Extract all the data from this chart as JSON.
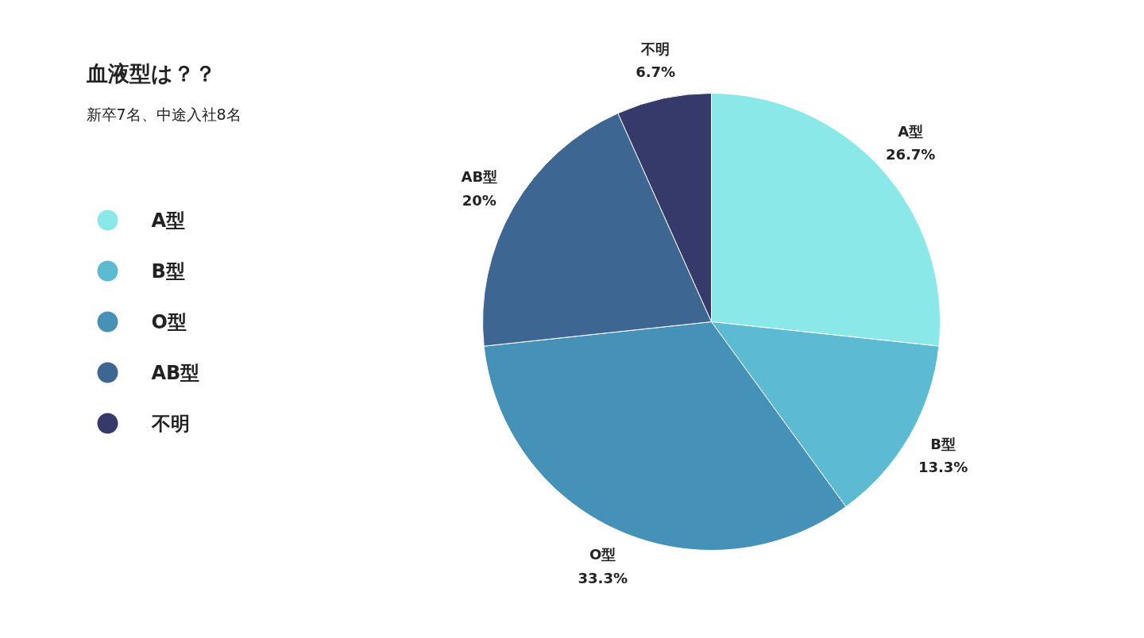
{
  "chart_data": {
    "type": "pie",
    "title": "血液型は？？",
    "subtitle": "新卒7名、中途入社8名",
    "categories": [
      "A型",
      "B型",
      "O型",
      "AB型",
      "不明"
    ],
    "values": [
      26.7,
      13.3,
      33.3,
      20,
      6.7
    ],
    "colors": [
      "#8ae8e8",
      "#5cbad3",
      "#4691b8",
      "#3d6693",
      "#353a6b"
    ],
    "value_labels": [
      "26.7%",
      "13.3%",
      "33.3%",
      "20%",
      "6.7%"
    ],
    "legend": "left"
  }
}
